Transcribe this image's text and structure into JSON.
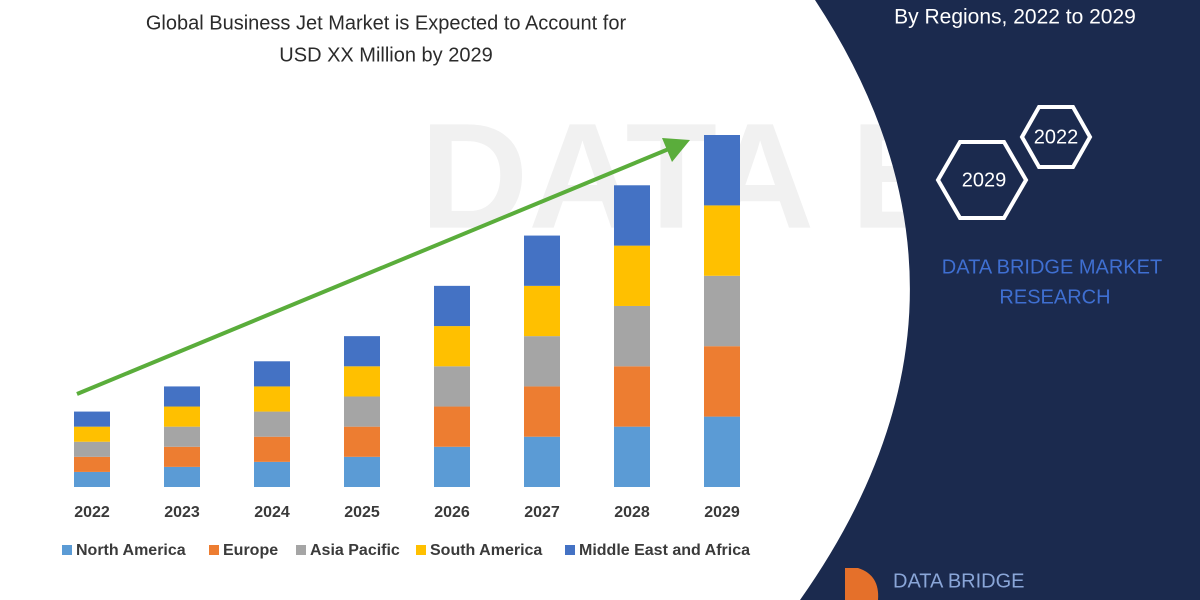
{
  "chart_data": {
    "type": "stacked-bar",
    "title": [
      "Global Business Jet Market is Expected to Account for",
      "USD XX Million by 2029"
    ],
    "subtitle": "By Regions, 2022 to 2029",
    "categories": [
      "2022",
      "2023",
      "2024",
      "2025",
      "2026",
      "2027",
      "2028",
      "2029"
    ],
    "series": [
      {
        "name": "North America",
        "color": "#5b9bd5",
        "values": [
          3,
          4,
          5,
          6,
          8,
          10,
          12,
          14
        ]
      },
      {
        "name": "Europe",
        "color": "#ed7d31",
        "values": [
          3,
          4,
          5,
          6,
          8,
          10,
          12,
          14
        ]
      },
      {
        "name": "Asia Pacific",
        "color": "#a5a5a5",
        "values": [
          3,
          4,
          5,
          6,
          8,
          10,
          12,
          14
        ]
      },
      {
        "name": "South America",
        "color": "#ffc000",
        "values": [
          3,
          4,
          5,
          6,
          8,
          10,
          12,
          14
        ]
      },
      {
        "name": "Middle East and Africa",
        "color": "#4472c4",
        "values": [
          3,
          4,
          5,
          6,
          8,
          10,
          12,
          14
        ]
      }
    ]
  },
  "badges": [
    "2022",
    "2029"
  ],
  "brand": [
    "DATA BRIDGE MARKET",
    "RESEARCH"
  ],
  "logo": "DATA BRIDGE"
}
